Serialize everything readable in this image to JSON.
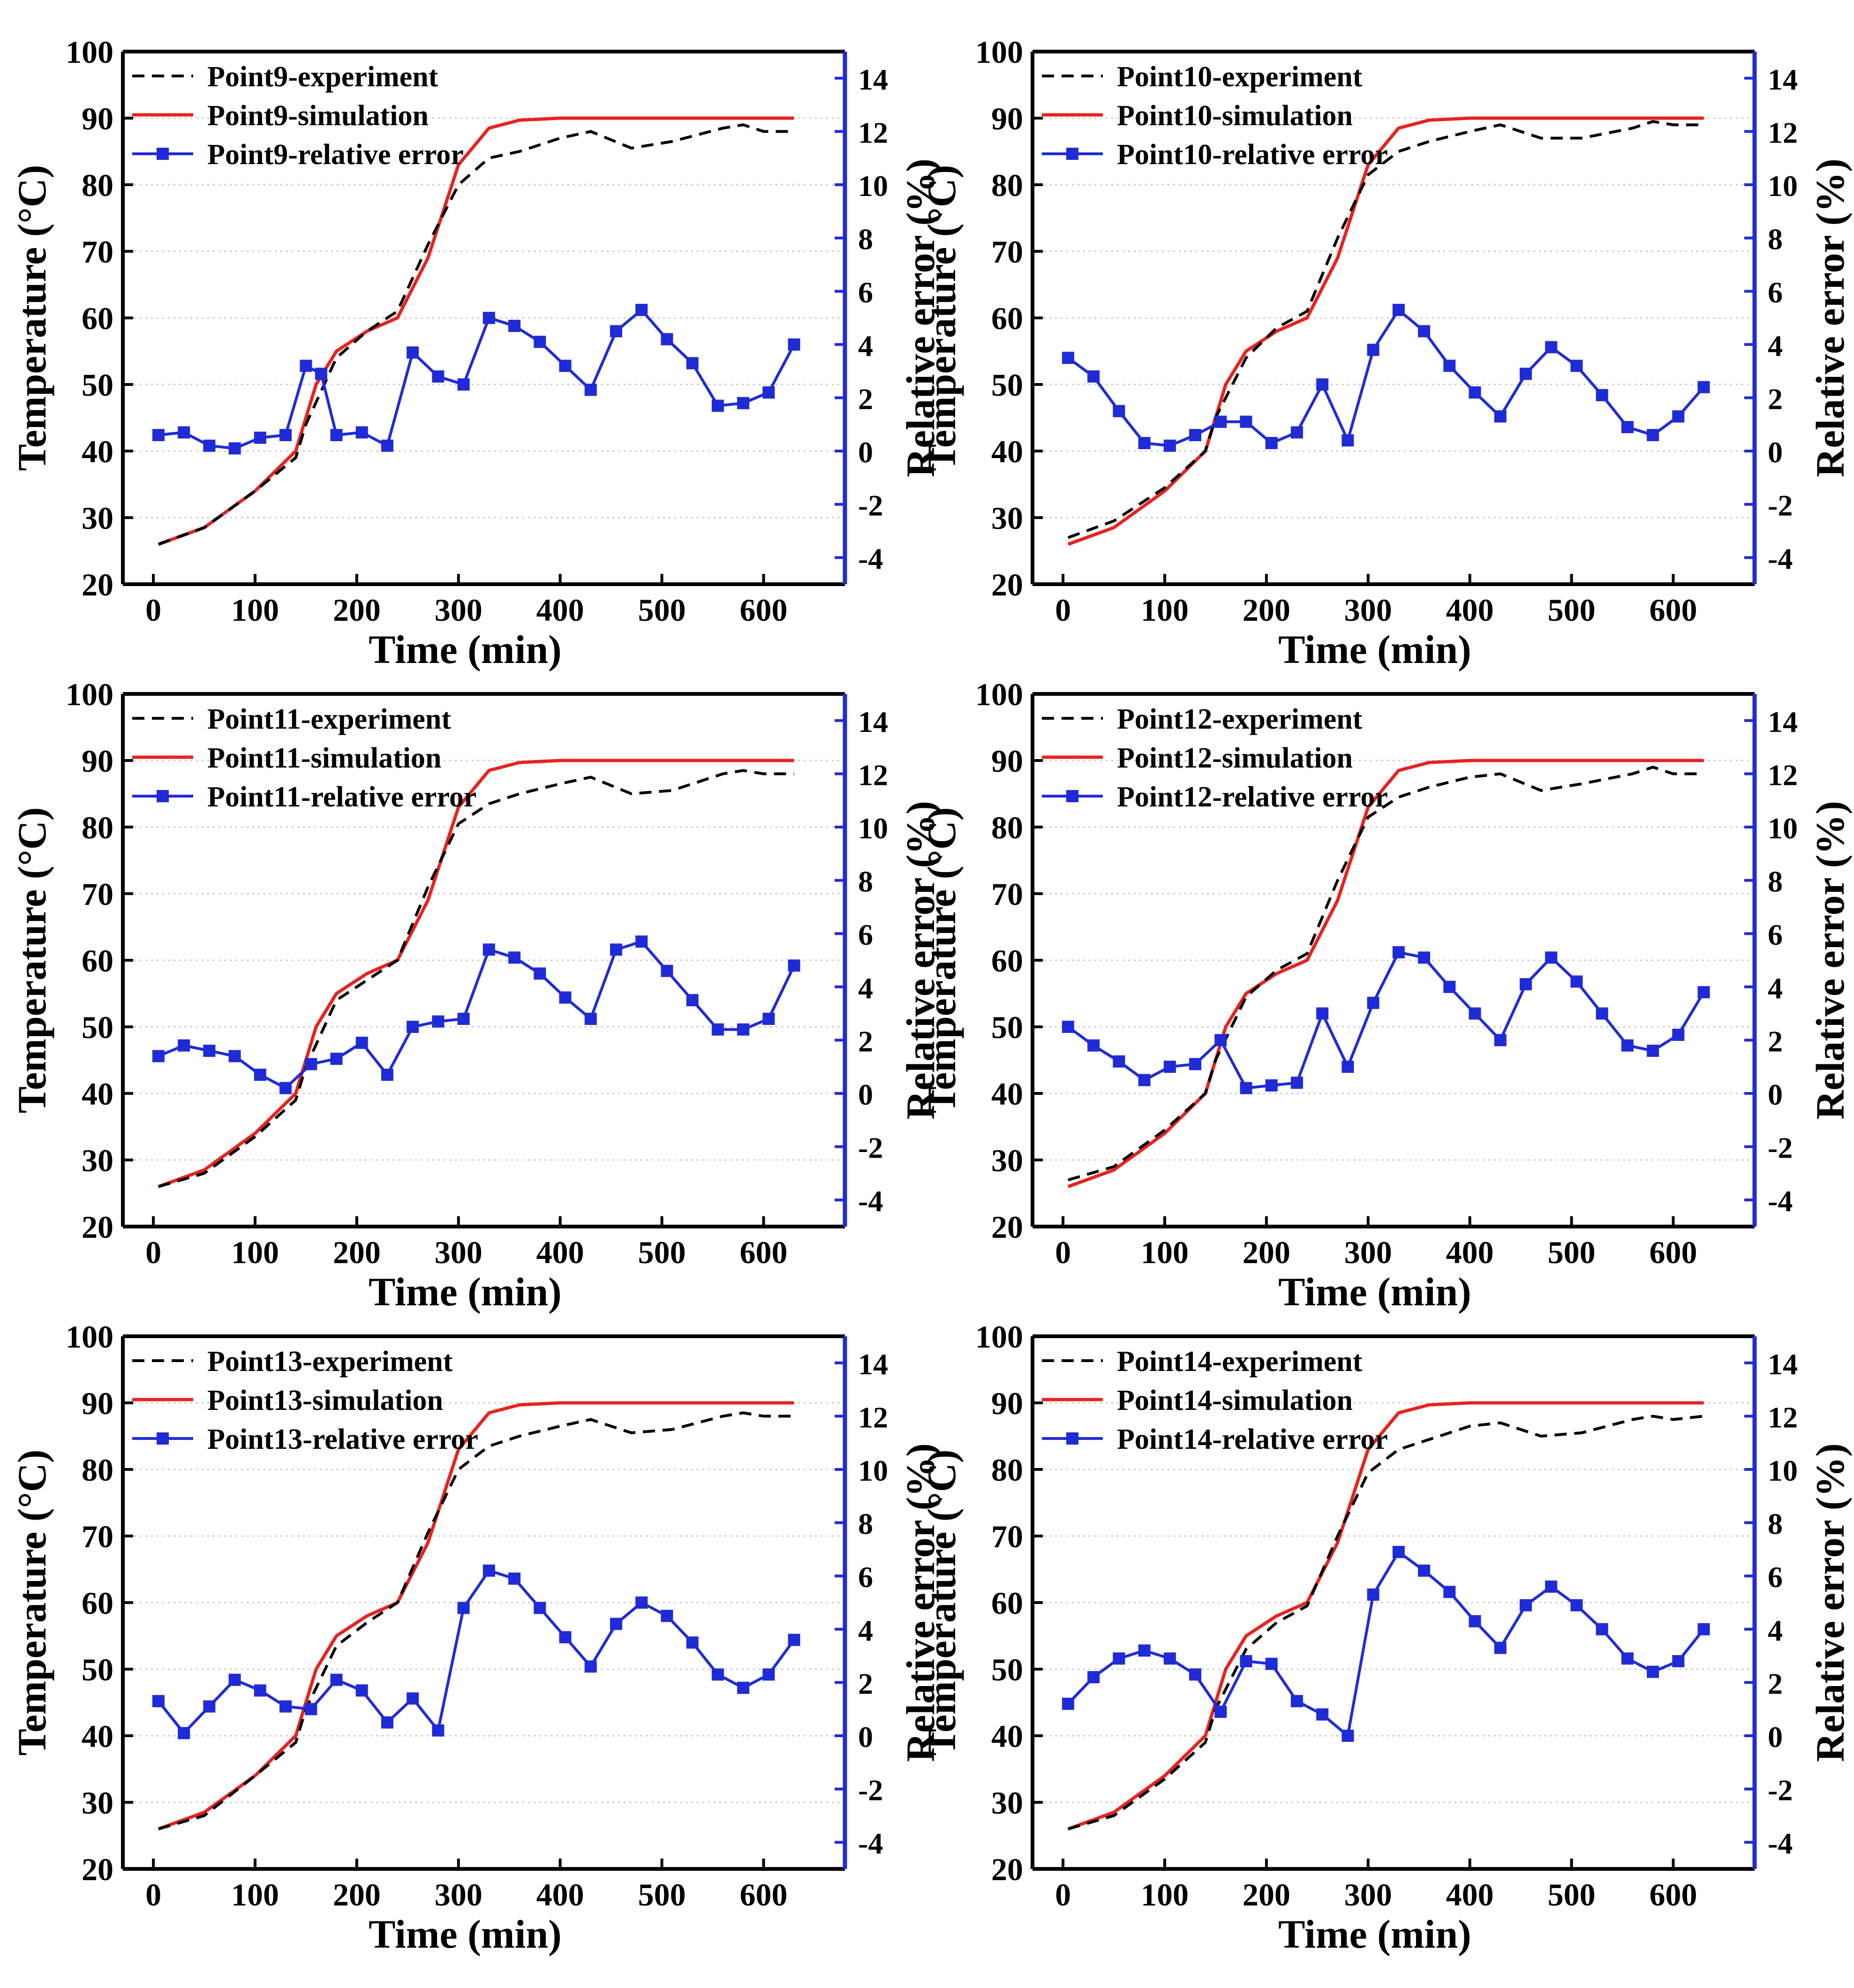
{
  "figure": {
    "axes": {
      "xlabel": "Time (min)",
      "ylabel_left": "Temperature (°C)",
      "ylabel_right": "Relative error (%)",
      "xlim": [
        -30,
        680
      ],
      "ylim_left": [
        20,
        100
      ],
      "ylim_right": [
        -5,
        15
      ],
      "xticks": [
        0,
        100,
        200,
        300,
        400,
        500,
        600
      ],
      "yticks_left": [
        20,
        30,
        40,
        50,
        60,
        70,
        80,
        90,
        100
      ],
      "yticks_right": [
        -4,
        -2,
        0,
        2,
        4,
        6,
        8,
        10,
        12,
        14
      ]
    },
    "colors": {
      "experiment": "#000000",
      "simulation": "#e8221e",
      "error": "#1f2bd6",
      "right_axis": "#1f2bd6"
    }
  },
  "chart_data": [
    {
      "type": "line",
      "panel": "Point9",
      "legend": [
        "Point9-experiment",
        "Point9-simulation",
        "Point9-relative error"
      ],
      "experiment": {
        "x": [
          5,
          50,
          100,
          140,
          150,
          180,
          210,
          240,
          270,
          300,
          330,
          360,
          400,
          430,
          470,
          510,
          560,
          580,
          600,
          630
        ],
        "y": [
          26,
          28.5,
          34,
          39,
          44,
          54,
          58,
          61,
          71,
          80,
          84,
          85,
          87,
          88,
          85.5,
          86.5,
          88.5,
          89,
          88,
          88
        ]
      },
      "simulation": {
        "x": [
          5,
          50,
          100,
          140,
          160,
          180,
          210,
          240,
          270,
          300,
          330,
          360,
          400,
          500,
          630
        ],
        "y": [
          26,
          28.5,
          34,
          40,
          50,
          55,
          58,
          60,
          69,
          83,
          88.5,
          89.7,
          90,
          90,
          90
        ]
      },
      "relative_error": {
        "x": [
          5,
          30,
          55,
          80,
          105,
          130,
          150,
          165,
          180,
          205,
          230,
          255,
          280,
          305,
          330,
          355,
          380,
          405,
          430,
          455,
          480,
          505,
          530,
          555,
          580,
          605,
          630
        ],
        "y": [
          0.6,
          0.7,
          0.2,
          0.1,
          0.5,
          0.6,
          3.2,
          2.9,
          0.6,
          0.7,
          0.2,
          3.7,
          2.8,
          2.5,
          5,
          4.7,
          4.1,
          3.2,
          2.3,
          4.5,
          5.3,
          4.2,
          3.3,
          1.7,
          1.8,
          2.2,
          4
        ]
      }
    },
    {
      "type": "line",
      "panel": "Point10",
      "legend": [
        "Point10-experiment",
        "Point10-simulation",
        "Point10-relative error"
      ],
      "experiment": {
        "x": [
          5,
          50,
          100,
          140,
          150,
          180,
          210,
          240,
          270,
          300,
          330,
          360,
          400,
          430,
          470,
          510,
          560,
          580,
          600,
          630
        ],
        "y": [
          27,
          29.5,
          34.5,
          40,
          45,
          54,
          58.5,
          61,
          72,
          81.5,
          85,
          86.5,
          88,
          89,
          87,
          87,
          88.5,
          89.5,
          89,
          89
        ]
      },
      "simulation": {
        "x": [
          5,
          50,
          100,
          140,
          160,
          180,
          210,
          240,
          270,
          300,
          330,
          360,
          400,
          500,
          630
        ],
        "y": [
          26,
          28.5,
          34,
          40,
          50,
          55,
          58,
          60,
          69,
          83,
          88.5,
          89.7,
          90,
          90,
          90
        ]
      },
      "relative_error": {
        "x": [
          5,
          30,
          55,
          80,
          105,
          130,
          155,
          180,
          205,
          230,
          255,
          280,
          305,
          330,
          355,
          380,
          405,
          430,
          455,
          480,
          505,
          530,
          555,
          580,
          605,
          630
        ],
        "y": [
          3.5,
          2.8,
          1.5,
          0.3,
          0.2,
          0.6,
          1.1,
          1.1,
          0.3,
          0.7,
          2.5,
          0.4,
          3.8,
          5.3,
          4.5,
          3.2,
          2.2,
          1.3,
          2.9,
          3.9,
          3.2,
          2.1,
          0.9,
          0.6,
          1.3,
          2.4
        ]
      }
    },
    {
      "type": "line",
      "panel": "Point11",
      "legend": [
        "Point11-experiment",
        "Point11-simulation",
        "Point11-relative error"
      ],
      "experiment": {
        "x": [
          5,
          50,
          100,
          140,
          150,
          180,
          210,
          240,
          270,
          300,
          330,
          360,
          400,
          430,
          470,
          510,
          560,
          580,
          600,
          630
        ],
        "y": [
          26,
          28,
          33.5,
          39,
          44,
          54,
          57,
          60,
          71,
          80.5,
          83.5,
          85,
          86.5,
          87.5,
          85,
          85.5,
          88,
          88.5,
          88,
          88
        ]
      },
      "simulation": {
        "x": [
          5,
          50,
          100,
          140,
          160,
          180,
          210,
          240,
          270,
          300,
          330,
          360,
          400,
          500,
          630
        ],
        "y": [
          26,
          28.5,
          34,
          40,
          50,
          55,
          58,
          60,
          69,
          83,
          88.5,
          89.7,
          90,
          90,
          90
        ]
      },
      "relative_error": {
        "x": [
          5,
          30,
          55,
          80,
          105,
          130,
          155,
          180,
          205,
          230,
          255,
          280,
          305,
          330,
          355,
          380,
          405,
          430,
          455,
          480,
          505,
          530,
          555,
          580,
          605,
          630
        ],
        "y": [
          1.4,
          1.8,
          1.6,
          1.4,
          0.7,
          0.2,
          1.1,
          1.3,
          1.9,
          0.7,
          2.5,
          2.7,
          2.8,
          5.4,
          5.1,
          4.5,
          3.6,
          2.8,
          5.4,
          5.7,
          4.6,
          3.5,
          2.4,
          2.4,
          2.8,
          4.8
        ]
      }
    },
    {
      "type": "line",
      "panel": "Point12",
      "legend": [
        "Point12-experiment",
        "Point12-simulation",
        "Point12-relative error"
      ],
      "experiment": {
        "x": [
          5,
          50,
          100,
          140,
          150,
          180,
          210,
          240,
          270,
          300,
          330,
          360,
          400,
          430,
          470,
          510,
          560,
          580,
          600,
          630
        ],
        "y": [
          27,
          29,
          34.5,
          40,
          45,
          54.5,
          58.5,
          61,
          72,
          81.5,
          84.5,
          86,
          87.5,
          88,
          85.5,
          86.5,
          88,
          89,
          88,
          88
        ]
      },
      "simulation": {
        "x": [
          5,
          50,
          100,
          140,
          160,
          180,
          210,
          240,
          270,
          300,
          330,
          360,
          400,
          500,
          630
        ],
        "y": [
          26,
          28.5,
          34,
          40,
          50,
          55,
          58,
          60,
          69,
          83,
          88.5,
          89.7,
          90,
          90,
          90
        ]
      },
      "relative_error": {
        "x": [
          5,
          30,
          55,
          80,
          105,
          130,
          155,
          180,
          205,
          230,
          255,
          280,
          305,
          330,
          355,
          380,
          405,
          430,
          455,
          480,
          505,
          530,
          555,
          580,
          605,
          630
        ],
        "y": [
          2.5,
          1.8,
          1.2,
          0.5,
          1,
          1.1,
          2,
          0.2,
          0.3,
          0.4,
          3,
          1,
          3.4,
          5.3,
          5.1,
          4,
          3,
          2,
          4.1,
          5.1,
          4.2,
          3,
          1.8,
          1.6,
          2.2,
          3.8
        ]
      }
    },
    {
      "type": "line",
      "panel": "Point13",
      "legend": [
        "Point13-experiment",
        "Point13-simulation",
        "Point13-relative error"
      ],
      "experiment": {
        "x": [
          5,
          50,
          100,
          140,
          150,
          180,
          210,
          240,
          270,
          300,
          330,
          360,
          400,
          430,
          470,
          510,
          560,
          580,
          600,
          630
        ],
        "y": [
          26,
          28,
          34,
          39,
          44,
          53.5,
          57,
          60,
          70.5,
          80,
          83.5,
          85,
          86.5,
          87.5,
          85.5,
          86,
          88,
          88.5,
          88,
          88
        ]
      },
      "simulation": {
        "x": [
          5,
          50,
          100,
          140,
          160,
          180,
          210,
          240,
          270,
          300,
          330,
          360,
          400,
          500,
          630
        ],
        "y": [
          26,
          28.5,
          34,
          40,
          50,
          55,
          58,
          60,
          69,
          83,
          88.5,
          89.7,
          90,
          90,
          90
        ]
      },
      "relative_error": {
        "x": [
          5,
          30,
          55,
          80,
          105,
          130,
          155,
          180,
          205,
          230,
          255,
          280,
          305,
          330,
          355,
          380,
          405,
          430,
          455,
          480,
          505,
          530,
          555,
          580,
          605,
          630
        ],
        "y": [
          1.3,
          0.1,
          1.1,
          2.1,
          1.7,
          1.1,
          1,
          2.1,
          1.7,
          0.5,
          1.4,
          0.2,
          4.8,
          6.2,
          5.9,
          4.8,
          3.7,
          2.6,
          4.2,
          5,
          4.5,
          3.5,
          2.3,
          1.8,
          2.3,
          3.6
        ]
      }
    },
    {
      "type": "line",
      "panel": "Point14",
      "legend": [
        "Point14-experiment",
        "Point14-simulation",
        "Point14-relative error"
      ],
      "experiment": {
        "x": [
          5,
          50,
          100,
          140,
          150,
          180,
          210,
          240,
          270,
          300,
          330,
          360,
          400,
          430,
          470,
          510,
          560,
          580,
          600,
          630
        ],
        "y": [
          26,
          28,
          33.5,
          39,
          44,
          53,
          57,
          59.5,
          70,
          79.5,
          83,
          84.5,
          86.5,
          87,
          85,
          85.5,
          87.5,
          88,
          87.5,
          88
        ]
      },
      "simulation": {
        "x": [
          5,
          50,
          100,
          140,
          160,
          180,
          210,
          240,
          270,
          300,
          330,
          360,
          400,
          500,
          630
        ],
        "y": [
          26,
          28.5,
          34,
          40,
          50,
          55,
          58,
          60,
          69,
          83,
          88.5,
          89.7,
          90,
          90,
          90
        ]
      },
      "relative_error": {
        "x": [
          5,
          30,
          55,
          80,
          105,
          130,
          155,
          180,
          205,
          230,
          255,
          280,
          305,
          330,
          355,
          380,
          405,
          430,
          455,
          480,
          505,
          530,
          555,
          580,
          605,
          630
        ],
        "y": [
          1.2,
          2.2,
          2.9,
          3.2,
          2.9,
          2.3,
          0.9,
          2.8,
          2.7,
          1.3,
          0.8,
          0,
          5.3,
          6.9,
          6.2,
          5.4,
          4.3,
          3.3,
          4.9,
          5.6,
          4.9,
          4,
          2.9,
          2.4,
          2.8,
          4
        ]
      }
    }
  ]
}
